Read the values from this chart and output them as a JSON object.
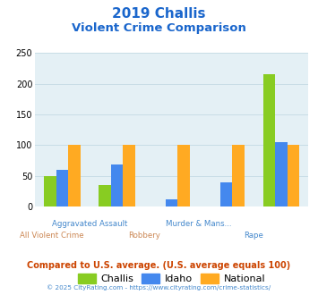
{
  "title_line1": "2019 Challis",
  "title_line2": "Violent Crime Comparison",
  "categories": [
    "All Violent Crime",
    "Aggravated Assault",
    "Robbery",
    "Murder & Mans...",
    "Rape"
  ],
  "series": {
    "Challis": [
      50,
      35,
      0,
      0,
      215
    ],
    "Idaho": [
      60,
      68,
      12,
      40,
      105
    ],
    "National": [
      100,
      100,
      100,
      100,
      100
    ]
  },
  "colors": {
    "Challis": "#88cc22",
    "Idaho": "#4488ee",
    "National": "#ffaa22"
  },
  "ylim": [
    0,
    250
  ],
  "yticks": [
    0,
    50,
    100,
    150,
    200,
    250
  ],
  "chart_bg": "#e4f0f5",
  "title_color": "#1a66cc",
  "x_labels_line1": [
    "All Violent Crime",
    "Aggravated Assault",
    "Robbery",
    "Murder & Mans...",
    "Rape"
  ],
  "x_labels_line2": [
    "",
    "",
    "",
    "",
    ""
  ],
  "x_label_top_color": "#4488cc",
  "x_label_bottom_color": [
    "#cc8844",
    "#4488cc",
    "#cc8844",
    "#4488cc",
    "#4488cc"
  ],
  "footer_text": "Compared to U.S. average. (U.S. average equals 100)",
  "copyright_text": "© 2025 CityRating.com - https://www.cityrating.com/crime-statistics/",
  "footer_color": "#cc4400",
  "copyright_color": "#4488cc",
  "grid_color": "#c8dde6"
}
